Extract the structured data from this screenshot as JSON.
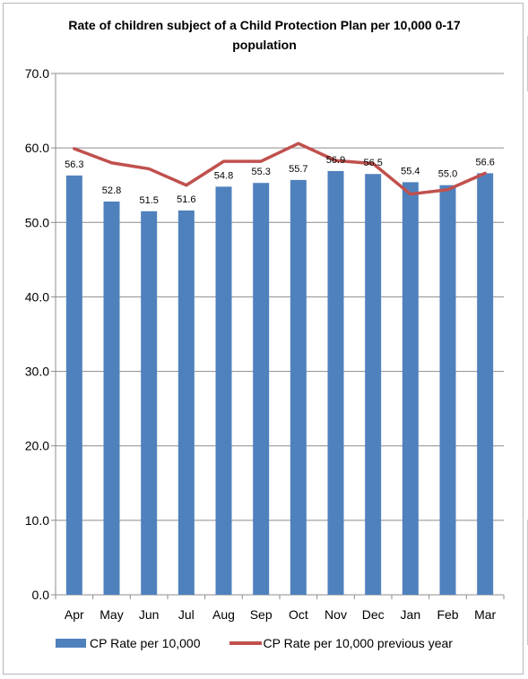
{
  "chart_data": {
    "type": "bar",
    "title": "Rate of children subject of a Child Protection Plan per 10,000 0-17 population",
    "categories": [
      "Apr",
      "May",
      "Jun",
      "Jul",
      "Aug",
      "Sep",
      "Oct",
      "Nov",
      "Dec",
      "Jan",
      "Feb",
      "Mar"
    ],
    "series": [
      {
        "name": "CP Rate per 10,000",
        "type": "bar",
        "color": "#4f81bd",
        "values": [
          56.3,
          52.8,
          51.5,
          51.6,
          54.8,
          55.3,
          55.7,
          56.9,
          56.5,
          55.4,
          55.0,
          56.6
        ],
        "labels": [
          "56.3",
          "52.8",
          "51.5",
          "51.6",
          "54.8",
          "55.3",
          "55.7",
          "56.9",
          "56.5",
          "55.4",
          "55.0",
          "56.6"
        ]
      },
      {
        "name": "CP Rate per 10,000 previous year",
        "type": "line",
        "color": "#c0504d",
        "values": [
          59.9,
          58.0,
          57.2,
          55.0,
          58.2,
          58.2,
          60.6,
          58.3,
          57.9,
          53.8,
          54.4,
          56.6
        ]
      }
    ],
    "y_ticks": [
      "0.0",
      "10.0",
      "20.0",
      "30.0",
      "40.0",
      "50.0",
      "60.0",
      "70.0"
    ],
    "ylim": [
      0,
      70
    ],
    "grid": true,
    "legend_position": "bottom"
  }
}
